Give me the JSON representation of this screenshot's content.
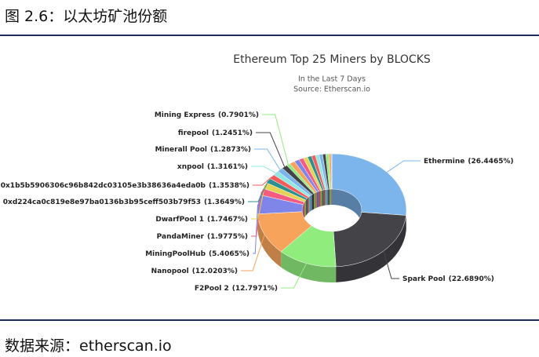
{
  "header": {
    "title": "图 2.6：以太坊矿池份额"
  },
  "footer": {
    "source": "数据来源：etherscan.io"
  },
  "chart_data": {
    "type": "donut3d",
    "title": "Ethereum Top 25 Miners by BLOCKS",
    "subtitle": "In the Last 7 Days",
    "source": "Source: Etherscan.io",
    "categories": [
      "Ethermine",
      "Spark Pool",
      "F2Pool 2",
      "Nanopool",
      "MiningPoolHub",
      "PandaMiner",
      "DwarfPool 1",
      "0xd224ca0c819e8e97ba0136b3b95ceff503b79f53",
      "0x1b5b5906306c96b842dc03105e3b38636a4eda0b",
      "xnpool",
      "Minerall Pool",
      "firepool",
      "Mining Express",
      null,
      null,
      null,
      null,
      null,
      null,
      null,
      null,
      null,
      null,
      null,
      null
    ],
    "values": [
      26.4465,
      22.689,
      12.7971,
      12.0203,
      5.4065,
      1.9775,
      1.7467,
      1.3649,
      1.3538,
      1.3161,
      1.2873,
      1.2451,
      0.7901,
      1.2,
      1.1,
      1.0,
      0.95,
      0.9,
      0.85,
      0.8,
      0.75,
      0.7,
      0.65,
      0.5,
      0.16
    ],
    "value_labels": [
      "(26.4465%)",
      "(22.6890%)",
      "(12.7971%)",
      "(12.0203%)",
      "(5.4065%)",
      "(1.9775%)",
      "(1.7467%)",
      "(1.3649%)",
      "(1.3538%)",
      "(1.3161%)",
      "(1.2873%)",
      "(1.2451%)",
      "(0.7901%)",
      null,
      null,
      null,
      null,
      null,
      null,
      null,
      null,
      null,
      null,
      null,
      null
    ],
    "colors": [
      "#7cb5ec",
      "#434348",
      "#90ed7d",
      "#f7a35c",
      "#8085e9",
      "#f15c80",
      "#e4d354",
      "#2b908f",
      "#f45b5b",
      "#91e8e1",
      "#7cb5ec",
      "#434348",
      "#90ed7d",
      "#f7a35c",
      "#8085e9",
      "#f15c80",
      "#e4d354",
      "#2b908f",
      "#f45b5b",
      "#91e8e1",
      "#7cb5ec",
      "#434348",
      "#90ed7d",
      "#f7a35c",
      "#8085e9"
    ]
  }
}
